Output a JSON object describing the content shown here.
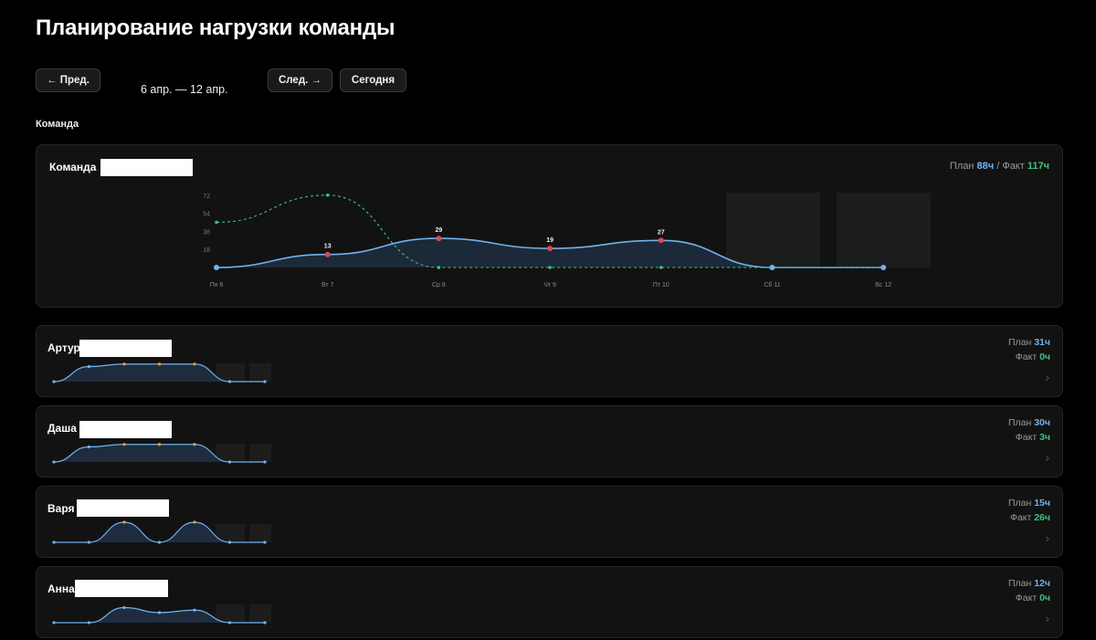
{
  "page": {
    "title": "Планирование нагрузки команды",
    "prev_label": "← Пред.",
    "range_label": "6 апр. — 12 апр.",
    "next_label": "След. →",
    "today_label": "Сегодня",
    "section_label": "Команда"
  },
  "team": {
    "name": "Команда",
    "plan_label": "План",
    "plan_value": "88ч",
    "separator": "/",
    "fact_label": "Факт",
    "fact_value": "117ч"
  },
  "chart_data": {
    "type": "area",
    "categories": [
      "Пн 6",
      "Вт 7",
      "Ср 8",
      "Чт 9",
      "Пт 10",
      "Сб 11",
      "Вс 12"
    ],
    "y_ticks": [
      "72",
      "54",
      "36",
      "18"
    ],
    "ylim": [
      0,
      90
    ],
    "series": [
      {
        "values": [
          0,
          13,
          29,
          19,
          27,
          0,
          0
        ],
        "labels": [
          "",
          "13",
          "29",
          "19",
          "27",
          "",
          ""
        ]
      },
      {
        "values": [
          45,
          72,
          0,
          0,
          0,
          0,
          0
        ]
      }
    ],
    "weekend_shaded": true
  },
  "members": [
    {
      "name": "Артур",
      "plan_label": "План",
      "plan_value": "31ч",
      "fact_label": "Факт",
      "fact_value": "0ч",
      "values": [
        0,
        6,
        7,
        7,
        7,
        0,
        0
      ]
    },
    {
      "name": "Даша",
      "plan_label": "План",
      "plan_value": "30ч",
      "fact_label": "Факт",
      "fact_value": "3ч",
      "values": [
        0,
        6,
        7,
        7,
        7,
        0,
        0
      ]
    },
    {
      "name": "Варя",
      "plan_label": "План",
      "plan_value": "15ч",
      "fact_label": "Факт",
      "fact_value": "26ч",
      "values": [
        0,
        0,
        8,
        0,
        8,
        0,
        0
      ]
    },
    {
      "name": "Анна",
      "plan_label": "План",
      "plan_value": "12ч",
      "fact_label": "Факт",
      "fact_value": "0ч",
      "values": [
        0,
        0,
        6,
        4,
        5,
        0,
        0
      ]
    }
  ],
  "colors": {
    "plan": "#6fb3ee",
    "fact": "#3ec27a",
    "peak_point": "#e0454d",
    "mid_point": "#e6a03a",
    "area_fill": "#1e2c3e"
  },
  "icons": {
    "chevron": "chevron-right-icon"
  }
}
